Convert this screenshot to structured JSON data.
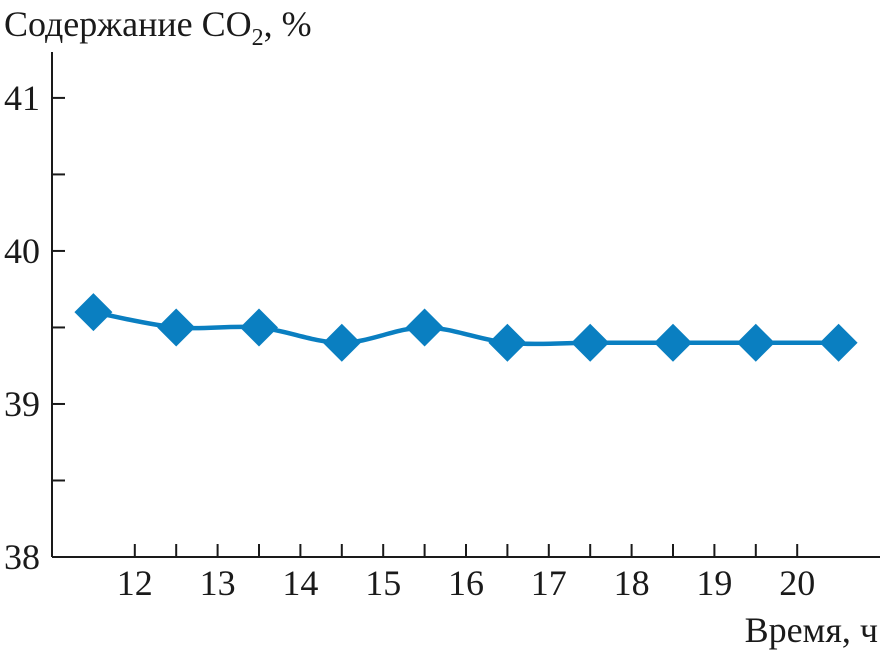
{
  "chart_data": {
    "type": "line",
    "ylabel_main": "Содержание CO",
    "ylabel_sub": "2",
    "ylabel_unit": ", %",
    "xlabel": "Время, ч",
    "xlim": [
      11,
      21
    ],
    "ylim": [
      38,
      41.3
    ],
    "x_ticks": [
      12,
      13,
      14,
      15,
      16,
      17,
      18,
      19,
      20
    ],
    "x_tick_labels": [
      "12",
      "13",
      "14",
      "15",
      "16",
      "17",
      "18",
      "19",
      "20"
    ],
    "y_major_ticks": [
      38,
      39,
      40,
      41
    ],
    "y_tick_labels": [
      "38",
      "39",
      "40",
      "41"
    ],
    "y_minor_ticks": [
      38.5,
      39.5,
      40.5
    ],
    "marker": "diamond",
    "color": "#0a7fc1",
    "grid": false,
    "series": [
      {
        "x": [
          11.5,
          12.5,
          13.5,
          14.5,
          15.5,
          16.5,
          17.5,
          18.5,
          19.5,
          20.5
        ],
        "values": [
          39.6,
          39.5,
          39.5,
          39.4,
          39.5,
          39.4,
          39.4,
          39.4,
          39.4,
          39.4
        ]
      }
    ]
  }
}
